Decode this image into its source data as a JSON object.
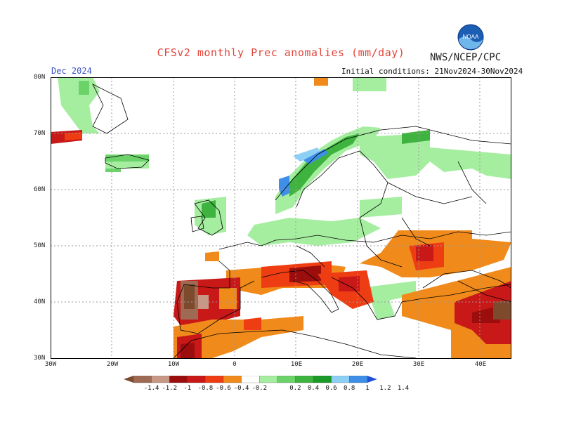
{
  "header": {
    "title": "CFSv2 monthly Prec anomalies (mm/day)",
    "agency": "NWS/NCEP/CPC",
    "logo_text": "NOAA",
    "month": "Dec 2024",
    "initial_conditions": "Initial conditions: 21Nov2024-30Nov2024"
  },
  "axes": {
    "lat_labels": [
      "80N",
      "70N",
      "60N",
      "50N",
      "40N",
      "30N"
    ],
    "lon_labels": [
      "30W",
      "20W",
      "10W",
      "0",
      "10E",
      "20E",
      "30E",
      "40E"
    ],
    "lat_range": [
      30,
      80
    ],
    "lon_range": [
      -30,
      45
    ],
    "grid": "dotted"
  },
  "colorbar": {
    "labels": [
      "-1.4",
      "-1.2",
      "-1",
      "-0.8",
      "-0.6",
      "-0.4",
      "-0.2",
      "0.2",
      "0.4",
      "0.6",
      "0.8",
      "1",
      "1.2",
      "1.4"
    ],
    "colors": [
      "#7d4a2e",
      "#9e6a54",
      "#c89886",
      "#9c0d0d",
      "#c81818",
      "#ee3d13",
      "#f08a1b",
      "#ffffff",
      "#a5eea0",
      "#6bd36a",
      "#3fb33f",
      "#1b9a2a",
      "#8ed0f5",
      "#3d8fe8",
      "#2050d8"
    ]
  },
  "colors": {
    "title": "#e0453a",
    "month": "#3b52c4",
    "land_outline": "#000000"
  }
}
